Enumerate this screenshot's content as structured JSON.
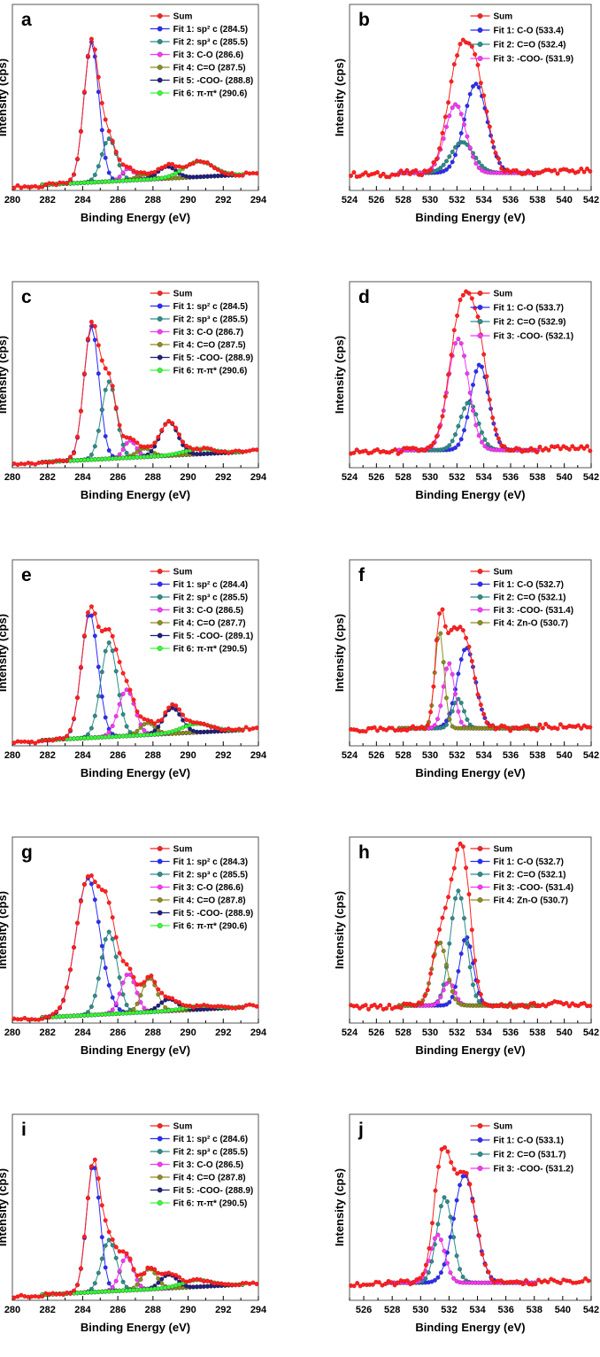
{
  "colors": {
    "Sum": "#ff2020",
    "Fit 1": "#2b2bff",
    "Fit 2": "#2a8c8c",
    "Fit 3": "#ff33ff",
    "Fit 4": "#8c8c1e",
    "Fit 5": "#1e1e80",
    "Fit 6": "#33ff33"
  },
  "chart_data": [
    {
      "type": "line",
      "panel": "a",
      "xlabel": "Binding Energy (eV)",
      "ylabel": "Intensity (cps)",
      "xlim": [
        280,
        294
      ],
      "xticks": [
        280,
        282,
        284,
        286,
        288,
        290,
        292,
        294
      ],
      "legend": [
        "Sum",
        "Fit 1: sp² c (284.5)",
        "Fit 2: sp³ c (285.5)",
        "Fit 3: C-O   (286.6)",
        "Fit 4: C=O   (287.5)",
        "Fit 5: -COO- (288.8)",
        "Fit 6: π-π*    (290.6)"
      ],
      "peaks": [
        [
          284.5,
          0.82,
          1.0
        ],
        [
          285.5,
          0.25,
          1.0
        ],
        [
          286.6,
          0.07,
          0.8
        ],
        [
          287.5,
          0.03,
          1.0
        ],
        [
          288.8,
          0.07,
          1.2
        ],
        [
          290.6,
          0.09,
          2.0
        ]
      ],
      "fit_range": [
        281.7,
        293.2
      ]
    },
    {
      "type": "line",
      "panel": "b",
      "xlabel": "Binding Energy (eV)",
      "ylabel": "Intensity (cps)",
      "xlim": [
        524,
        542
      ],
      "xticks": [
        524,
        526,
        528,
        530,
        532,
        534,
        536,
        538,
        540,
        542
      ],
      "legend": [
        "Sum",
        "Fit 1: C-O  (533.4)",
        "Fit 2: C=O  (532.4)",
        "Fit 3: -COO- (531.9)"
      ],
      "peaks": [
        [
          533.4,
          0.52,
          2.0
        ],
        [
          532.4,
          0.18,
          2.0
        ],
        [
          531.9,
          0.4,
          1.8
        ]
      ],
      "fit_range": [
        527.7,
        538.1
      ]
    },
    {
      "type": "line",
      "panel": "c",
      "xlabel": "Binding Energy (eV)",
      "ylabel": "Intensity (cps)",
      "xlim": [
        280,
        294
      ],
      "xticks": [
        280,
        282,
        284,
        286,
        288,
        290,
        292,
        294
      ],
      "legend": [
        "Sum",
        "Fit 1: sp² c (284.5)",
        "Fit 2: sp³ c (285.5)",
        "Fit 3: C-O   (286.7)",
        "Fit 4: C=O   (287.5)",
        "Fit 5: -COO- (288.9)",
        "Fit 6: π-π*    (290.6)"
      ],
      "peaks": [
        [
          284.5,
          0.78,
          1.0
        ],
        [
          285.5,
          0.45,
          1.0
        ],
        [
          286.7,
          0.1,
          0.8
        ],
        [
          287.5,
          0.05,
          1.0
        ],
        [
          288.9,
          0.2,
          1.2
        ],
        [
          290.6,
          0.03,
          2.0
        ]
      ],
      "fit_range": [
        281.7,
        293.2
      ]
    },
    {
      "type": "line",
      "panel": "d",
      "xlabel": "Binding Energy (eV)",
      "ylabel": "Intensity (cps)",
      "xlim": [
        524,
        542
      ],
      "xticks": [
        524,
        526,
        528,
        530,
        532,
        534,
        536,
        538,
        540,
        542
      ],
      "legend": [
        "Sum",
        "Fit 1: C-O (533.7)",
        "Fit 2: C=O  (532.9)",
        "Fit 3: -COO- (532.1)"
      ],
      "peaks": [
        [
          533.7,
          0.5,
          1.6
        ],
        [
          532.9,
          0.28,
          1.6
        ],
        [
          532.1,
          0.65,
          1.8
        ]
      ],
      "fit_range": [
        527.7,
        538.1
      ]
    },
    {
      "type": "line",
      "panel": "e",
      "xlabel": "Binding Energy (eV)",
      "ylabel": "Intensity (cps)",
      "xlim": [
        280,
        294
      ],
      "xticks": [
        280,
        282,
        284,
        286,
        288,
        290,
        292,
        294
      ],
      "legend": [
        "Sum",
        "Fit 1: sp² c (284.4)",
        "Fit 2: sp³ c (285.5)",
        "Fit 3: C-O   (286.5)",
        "Fit 4: C=O   (287.7)",
        "Fit 5: -COO- (289.1)",
        "Fit 6: π-π*    (290.5)"
      ],
      "peaks": [
        [
          284.4,
          0.73,
          1.1
        ],
        [
          285.5,
          0.55,
          1.1
        ],
        [
          286.5,
          0.27,
          1.1
        ],
        [
          287.7,
          0.07,
          1.0
        ],
        [
          289.1,
          0.15,
          1.2
        ],
        [
          290.5,
          0.05,
          2.0
        ]
      ],
      "fit_range": [
        281.7,
        293.2
      ]
    },
    {
      "type": "line",
      "panel": "f",
      "xlabel": "Binding Energy (eV)",
      "ylabel": "Intensity (cps)",
      "xlim": [
        524,
        542
      ],
      "xticks": [
        524,
        526,
        528,
        530,
        532,
        534,
        536,
        538,
        540,
        542
      ],
      "legend": [
        "Sum",
        "Fit 1: C-O (532.7)",
        "Fit 2: C=O  (532.1)",
        "Fit 3: -COO- (531.4)",
        "Fit 4: Zn-O  (530.7)"
      ],
      "peaks": [
        [
          532.7,
          0.47,
          1.6
        ],
        [
          532.1,
          0.17,
          1.0
        ],
        [
          531.4,
          0.38,
          1.0
        ],
        [
          530.7,
          0.57,
          0.8
        ]
      ],
      "fit_range": [
        527.7,
        538.1
      ]
    },
    {
      "type": "line",
      "panel": "g",
      "xlabel": "Binding Energy (eV)",
      "ylabel": "Intensity (cps)",
      "xlim": [
        280,
        294
      ],
      "xticks": [
        280,
        282,
        284,
        286,
        288,
        290,
        292,
        294
      ],
      "legend": [
        "Sum",
        "Fit 1: sp² c (284.3)",
        "Fit 2: sp³ c (285.5)",
        "Fit 3: C-O   (286.6)",
        "Fit 4: C=O   (287.8)",
        "Fit 5: -COO- (288.9)",
        "Fit 6: π-π*    (290.6)"
      ],
      "peaks": [
        [
          284.3,
          0.8,
          1.6
        ],
        [
          285.5,
          0.48,
          1.1
        ],
        [
          286.6,
          0.23,
          1.0
        ],
        [
          287.8,
          0.2,
          1.0
        ],
        [
          288.9,
          0.07,
          1.2
        ],
        [
          290.6,
          0.02,
          2.0
        ]
      ],
      "fit_range": [
        281.7,
        293.2
      ]
    },
    {
      "type": "line",
      "panel": "h",
      "xlabel": "Binding Energy (eV)",
      "ylabel": "Intensity (cps)",
      "xlim": [
        524,
        542
      ],
      "xticks": [
        524,
        526,
        528,
        530,
        532,
        534,
        536,
        538,
        540,
        542
      ],
      "legend": [
        "Sum",
        "Fit 1: C-O (532.7)",
        "Fit 2: C=O (532.1)",
        "Fit 3: -COO- (531.4)",
        "Fit 4: Zn-O (530.7)"
      ],
      "peaks": [
        [
          532.7,
          0.4,
          1.2
        ],
        [
          532.1,
          0.67,
          1.4
        ],
        [
          531.4,
          0.14,
          1.0
        ],
        [
          530.7,
          0.37,
          1.3
        ]
      ],
      "fit_range": [
        527.7,
        538.1
      ]
    },
    {
      "type": "line",
      "panel": "i",
      "xlabel": "Binding Energy (eV)",
      "ylabel": "Intensity (cps)",
      "xlim": [
        280,
        294
      ],
      "xticks": [
        280,
        282,
        284,
        286,
        288,
        290,
        292,
        294
      ],
      "legend": [
        "Sum",
        "Fit 1: sp² c (284.6)",
        "Fit 2: sp³ c (285.5)",
        "Fit 3: C-O   (286.5)",
        "Fit 4: C=O   (287.8)",
        "Fit 5: -COO- (288.9)",
        "Fit 6: π-π*    (290.5)"
      ],
      "peaks": [
        [
          284.6,
          0.75,
          0.9
        ],
        [
          285.5,
          0.3,
          1.0
        ],
        [
          286.5,
          0.2,
          0.9
        ],
        [
          287.8,
          0.12,
          1.0
        ],
        [
          288.9,
          0.08,
          1.1
        ],
        [
          290.5,
          0.04,
          2.0
        ]
      ],
      "fit_range": [
        281.7,
        293.2
      ]
    },
    {
      "type": "line",
      "panel": "j",
      "xlabel": "Binding Energy (eV)",
      "ylabel": "Intensity (cps)",
      "xlim": [
        525,
        542
      ],
      "xticks": [
        526,
        528,
        530,
        532,
        534,
        536,
        538,
        540,
        542
      ],
      "legend": [
        "Sum",
        "Fit 1: C-O (533.1)",
        "Fit 2: C=O (531.7)",
        "Fit 3: -COO- (531.2)"
      ],
      "peaks": [
        [
          533.1,
          0.63,
          1.8
        ],
        [
          531.7,
          0.5,
          1.3
        ],
        [
          531.2,
          0.28,
          1.2
        ]
      ],
      "fit_range": [
        527.7,
        538.1
      ]
    }
  ]
}
